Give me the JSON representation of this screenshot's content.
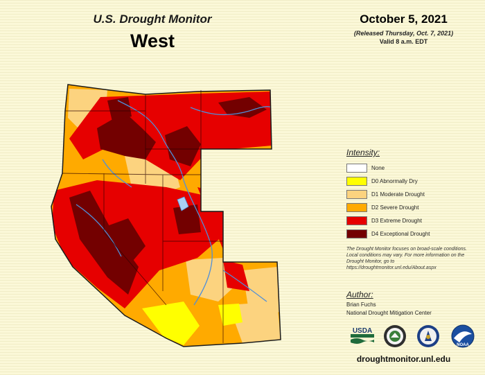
{
  "header": {
    "line1": "U.S. Drought Monitor",
    "line2": "West"
  },
  "date": {
    "main": "October 5, 2021",
    "released": "(Released Thursday, Oct. 7, 2021)",
    "valid": "Valid 8 a.m. EDT"
  },
  "legend": {
    "title": "Intensity:",
    "items": [
      {
        "label": "None",
        "color": "#ffffff"
      },
      {
        "label": "D0 Abnormally Dry",
        "color": "#ffff00"
      },
      {
        "label": "D1 Moderate Drought",
        "color": "#fcd37f"
      },
      {
        "label": "D2 Severe Drought",
        "color": "#ffaa00"
      },
      {
        "label": "D3 Extreme Drought",
        "color": "#e60000"
      },
      {
        "label": "D4 Exceptional Drought",
        "color": "#730000"
      }
    ]
  },
  "note": "The Drought Monitor focuses on broad-scale conditions. Local conditions may vary. For more information on the Drought Monitor, go to https://droughtmonitor.unl.edu/About.aspx",
  "author": {
    "title": "Author:",
    "name": "Brian Fuchs",
    "org": "National Drought Mitigation Center"
  },
  "logos": [
    {
      "text": "USDA",
      "icon": "usda-logo"
    },
    {
      "text": "",
      "icon": "ndmc-logo"
    },
    {
      "text": "",
      "icon": "doc-seal-logo"
    },
    {
      "text": "NOAA",
      "icon": "noaa-logo"
    }
  ],
  "site_url": "droughtmonitor.unl.edu",
  "colors": {
    "background": "#fbf8d8",
    "water": "#4f8fd9",
    "lake": "#a9d0f5"
  }
}
